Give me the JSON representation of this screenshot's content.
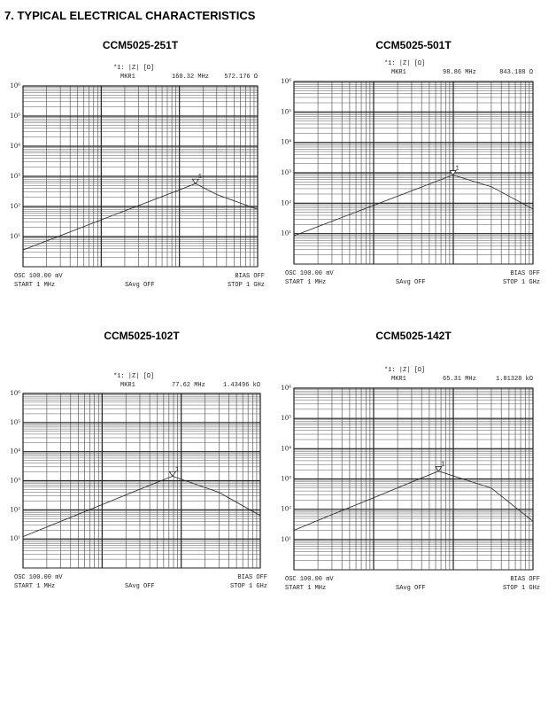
{
  "page_title": "7. TYPICAL ELECTRICAL CHARACTERISTICS",
  "chart_data": [
    {
      "type": "line",
      "title": "CCM5025-251T",
      "log_x": true,
      "log_y": true,
      "grid": true,
      "color": "#222222",
      "x": [
        1,
        3,
        10,
        30,
        100,
        160.32,
        300,
        1000
      ],
      "values": [
        3.6,
        10.7,
        36,
        107,
        357,
        572.176,
        250,
        80
      ],
      "xlim": [
        1,
        1000
      ],
      "ylim": [
        1,
        1000000
      ],
      "yticks": [
        {
          "value": 10,
          "label": "10¹"
        },
        {
          "value": 100,
          "label": "10²"
        },
        {
          "value": 1000,
          "label": "10³"
        },
        {
          "value": 10000,
          "label": "10⁴"
        },
        {
          "value": 100000,
          "label": "10⁵"
        },
        {
          "value": 1000000,
          "label": "10⁶"
        }
      ],
      "trace_label": "*1: |Z| [Ω]",
      "marker": {
        "name": "MKR1",
        "tag": "1",
        "x": 160.32,
        "x_label": "160.32 MHz",
        "y": 572.176,
        "y_label": "572.176 Ω"
      },
      "osc": "OSC 100.00 mV",
      "bias": "BIAS OFF",
      "start": "START  1 MHz",
      "savg": "SAvg OFF",
      "stop": "STOP  1 GHz"
    },
    {
      "type": "line",
      "title": "CCM5025-501T",
      "log_x": true,
      "log_y": true,
      "grid": true,
      "color": "#222222",
      "x": [
        1,
        3,
        10,
        30,
        98.86,
        300,
        1000
      ],
      "values": [
        8.5,
        25.5,
        85,
        255,
        843.188,
        350,
        65
      ],
      "xlim": [
        1,
        1000
      ],
      "ylim": [
        1,
        1000000
      ],
      "yticks": [
        {
          "value": 10,
          "label": "10¹"
        },
        {
          "value": 100,
          "label": "10²"
        },
        {
          "value": 1000,
          "label": "10³"
        },
        {
          "value": 10000,
          "label": "10⁴"
        },
        {
          "value": 100000,
          "label": "10⁵"
        },
        {
          "value": 1000000,
          "label": "10⁶"
        }
      ],
      "trace_label": "*1: |Z| [Ω]",
      "marker": {
        "name": "MKR1",
        "tag": "1",
        "x": 98.86,
        "x_label": "98.86 MHz",
        "y": 843.188,
        "y_label": "843.188 Ω"
      },
      "osc": "OSC 100.00 mV",
      "bias": "BIAS OFF",
      "start": "START  1 MHz",
      "savg": "SAvg OFF",
      "stop": "STOP  1 GHz"
    },
    {
      "type": "line",
      "title": "CCM5025-102T",
      "log_x": true,
      "log_y": true,
      "grid": true,
      "color": "#222222",
      "x": [
        1,
        3,
        10,
        30,
        77.62,
        300,
        1000
      ],
      "values": [
        12,
        40,
        151,
        510,
        1434.96,
        400,
        63
      ],
      "xlim": [
        1,
        1000
      ],
      "ylim": [
        1,
        1000000
      ],
      "yticks": [
        {
          "value": 10,
          "label": "10¹"
        },
        {
          "value": 100,
          "label": "10²"
        },
        {
          "value": 1000,
          "label": "10³"
        },
        {
          "value": 10000,
          "label": "10⁴"
        },
        {
          "value": 100000,
          "label": "10⁵"
        },
        {
          "value": 1000000,
          "label": "10⁶"
        }
      ],
      "trace_label": "*1: |Z| [Ω]",
      "marker": {
        "name": "MKR1",
        "tag": "1",
        "x": 77.62,
        "x_label": "77.62 MHz",
        "y": 1434.96,
        "y_label": "1.43496 kΩ"
      },
      "osc": "OSC 100.00 mV",
      "bias": "BIAS OFF",
      "start": "START  1 MHz",
      "savg": "SAvg OFF",
      "stop": "STOP  1 GHz"
    },
    {
      "type": "line",
      "title": "CCM5025-142T",
      "log_x": true,
      "log_y": true,
      "grid": true,
      "color": "#222222",
      "x": [
        1,
        3,
        10,
        30,
        65.31,
        300,
        1000
      ],
      "values": [
        20,
        66,
        240,
        790,
        1813.28,
        500,
        40
      ],
      "xlim": [
        1,
        1000
      ],
      "ylim": [
        1,
        1000000
      ],
      "yticks": [
        {
          "value": 10,
          "label": "10¹"
        },
        {
          "value": 100,
          "label": "10²"
        },
        {
          "value": 1000,
          "label": "10³"
        },
        {
          "value": 10000,
          "label": "10⁴"
        },
        {
          "value": 100000,
          "label": "10⁵"
        },
        {
          "value": 1000000,
          "label": "10⁶"
        }
      ],
      "trace_label": "*1: |Z| [Ω]",
      "marker": {
        "name": "MKR1",
        "tag": "1",
        "x": 65.31,
        "x_label": "65.31 MHz",
        "y": 1813.28,
        "y_label": "1.81328 kΩ"
      },
      "osc": "OSC 100.00 mV",
      "bias": "BIAS OFF",
      "start": "START  1 MHz",
      "savg": "SAvg OFF",
      "stop": "STOP  1 GHz"
    }
  ]
}
